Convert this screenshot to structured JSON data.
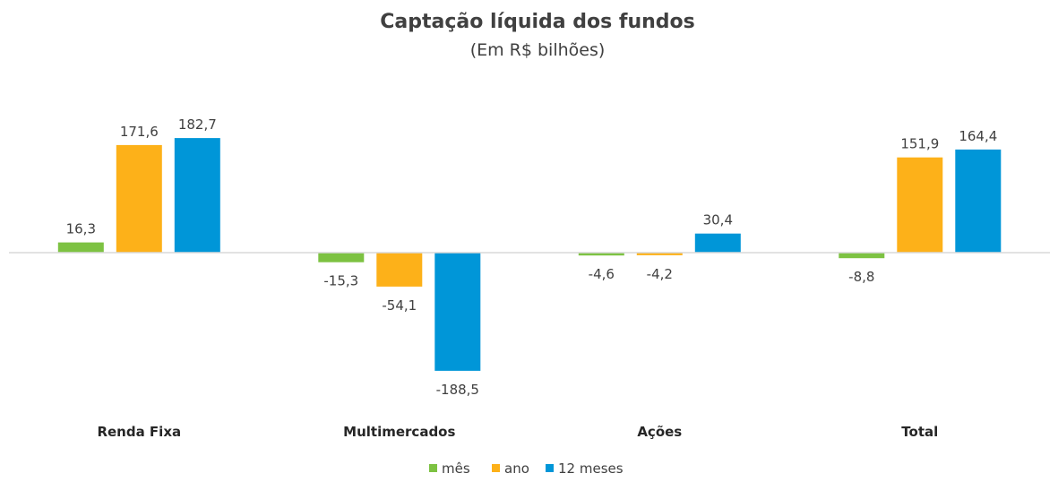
{
  "chart_data": {
    "type": "bar",
    "title": "Captação líquida dos fundos",
    "subtitle": "(Em R$ bilhões)",
    "xlabel": "",
    "ylabel": "",
    "categories": [
      "Renda Fixa",
      "Multimercados",
      "Ações",
      "Total"
    ],
    "series": [
      {
        "name": "mês",
        "color": "#7DC242",
        "values": [
          16.3,
          -15.3,
          -4.6,
          -8.8
        ],
        "labels": [
          "16,3",
          "-15,3",
          "-4,6",
          "-8,8"
        ]
      },
      {
        "name": "ano",
        "color": "#FDB119",
        "values": [
          171.6,
          -54.1,
          -4.2,
          151.9
        ],
        "labels": [
          "171,6",
          "-54,1",
          "-4,2",
          "151,9"
        ]
      },
      {
        "name": "12 meses",
        "color": "#0096D8",
        "values": [
          182.7,
          -188.5,
          30.4,
          164.4
        ],
        "labels": [
          "182,7",
          "-188,5",
          "30,4",
          "164,4"
        ]
      }
    ],
    "ylim": [
      -200,
      200
    ],
    "grid": false,
    "legend": "bottom"
  }
}
